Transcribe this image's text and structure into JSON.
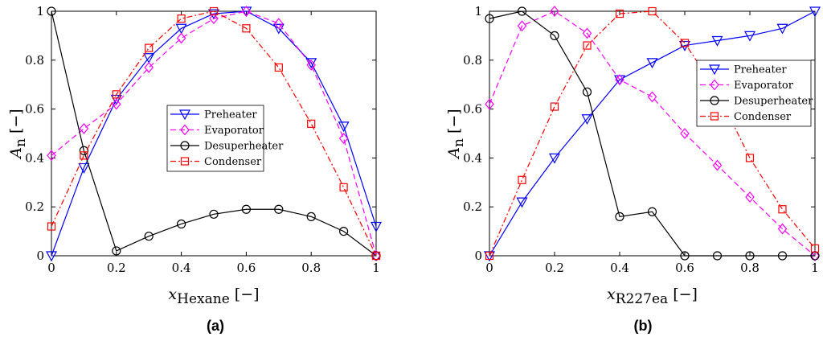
{
  "chart_data": [
    {
      "type": "line",
      "caption": "(a)",
      "xlabel_symbol": "x",
      "xlabel_sub": "Hexane",
      "xlabel_unit": "[−]",
      "ylabel_symbol": "A",
      "ylabel_sub": "n",
      "ylabel_unit": "[−]",
      "xlim": [
        0,
        1
      ],
      "ylim": [
        0,
        1
      ],
      "xticks": [
        "0",
        "0.2",
        "0.4",
        "0.6",
        "0.8",
        "1"
      ],
      "yticks": [
        "0",
        "0.2",
        "0.4",
        "0.6",
        "0.8",
        "1"
      ],
      "grid": false,
      "legend_position": "center",
      "x": [
        0,
        0.1,
        0.2,
        0.3,
        0.4,
        0.5,
        0.6,
        0.7,
        0.8,
        0.9,
        1.0
      ],
      "series": [
        {
          "name": "Preheater",
          "color": "#0000ff",
          "dash": "solid",
          "marker": "triangle-down",
          "values": [
            0,
            0.36,
            0.64,
            0.81,
            0.93,
            0.99,
            1.0,
            0.93,
            0.79,
            0.53,
            0.12
          ]
        },
        {
          "name": "Evaporator",
          "color": "#ff00ff",
          "dash": "dashed",
          "marker": "diamond",
          "values": [
            0.41,
            0.52,
            0.62,
            0.77,
            0.89,
            0.97,
            1.0,
            0.95,
            0.78,
            0.48,
            0
          ]
        },
        {
          "name": "Desuperheater",
          "color": "#000000",
          "dash": "solid",
          "marker": "circle",
          "values": [
            1.0,
            0.43,
            0.02,
            0.08,
            0.13,
            0.17,
            0.19,
            0.19,
            0.16,
            0.1,
            0
          ]
        },
        {
          "name": "Condenser",
          "color": "#ff0000",
          "dash": "dashdot",
          "marker": "square",
          "values": [
            0.12,
            0.41,
            0.66,
            0.85,
            0.97,
            1.0,
            0.93,
            0.77,
            0.54,
            0.28,
            0
          ]
        }
      ]
    },
    {
      "type": "line",
      "caption": "(b)",
      "xlabel_symbol": "x",
      "xlabel_sub": "R227ea",
      "xlabel_unit": "[−]",
      "ylabel_symbol": "A",
      "ylabel_sub": "n",
      "ylabel_unit": "[−]",
      "xlim": [
        0,
        1
      ],
      "ylim": [
        0,
        1
      ],
      "xticks": [
        "0",
        "0.2",
        "0.4",
        "0.6",
        "0.8",
        "1"
      ],
      "yticks": [
        "0",
        "0.2",
        "0.4",
        "0.6",
        "0.8",
        "1"
      ],
      "grid": false,
      "legend_position": "top-right",
      "x": [
        0,
        0.1,
        0.2,
        0.3,
        0.4,
        0.5,
        0.6,
        0.7,
        0.8,
        0.9,
        1.0
      ],
      "series": [
        {
          "name": "Preheater",
          "color": "#0000ff",
          "dash": "solid",
          "marker": "triangle-down",
          "values": [
            0,
            0.22,
            0.4,
            0.56,
            0.72,
            0.79,
            0.86,
            0.88,
            0.9,
            0.93,
            1.0
          ]
        },
        {
          "name": "Evaporator",
          "color": "#ff00ff",
          "dash": "dashed",
          "marker": "diamond",
          "values": [
            0.62,
            0.94,
            1.0,
            0.91,
            0.72,
            0.65,
            0.5,
            0.37,
            0.24,
            0.11,
            0
          ]
        },
        {
          "name": "Desuperheater",
          "color": "#000000",
          "dash": "solid",
          "marker": "circle",
          "values": [
            0.97,
            1.0,
            0.9,
            0.67,
            0.16,
            0.18,
            0,
            0,
            0,
            0,
            0
          ]
        },
        {
          "name": "Condenser",
          "color": "#ff0000",
          "dash": "dashdot",
          "marker": "square",
          "values": [
            0,
            0.31,
            0.61,
            0.86,
            0.99,
            1.0,
            0.87,
            0.67,
            0.4,
            0.19,
            0.03
          ]
        }
      ]
    }
  ]
}
